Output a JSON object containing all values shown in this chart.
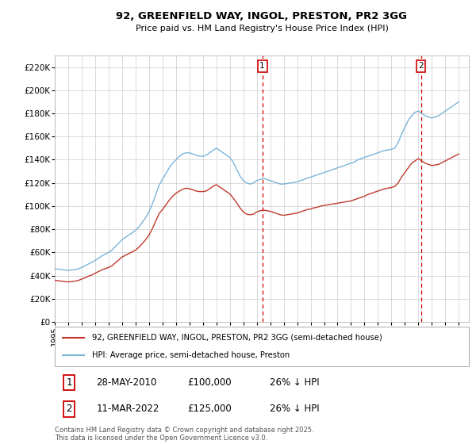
{
  "title": "92, GREENFIELD WAY, INGOL, PRESTON, PR2 3GG",
  "subtitle": "Price paid vs. HM Land Registry's House Price Index (HPI)",
  "ylim": [
    0,
    230000
  ],
  "yticks": [
    0,
    20000,
    40000,
    60000,
    80000,
    100000,
    120000,
    140000,
    160000,
    180000,
    200000,
    220000
  ],
  "ytick_labels": [
    "£0",
    "£20K",
    "£40K",
    "£60K",
    "£80K",
    "£100K",
    "£120K",
    "£140K",
    "£160K",
    "£180K",
    "£200K",
    "£220K"
  ],
  "sale1_date": 2010.41,
  "sale1_price": 100000,
  "sale1_label": "1",
  "sale2_date": 2022.19,
  "sale2_price": 125000,
  "sale2_label": "2",
  "hpi_color": "#7ab4d8",
  "price_color": "#c0392b",
  "dashed_line_color": "#cc0000",
  "grid_color": "#cccccc",
  "background_color": "#ffffff",
  "legend_label_red": "92, GREENFIELD WAY, INGOL, PRESTON, PR2 3GG (semi-detached house)",
  "legend_label_blue": "HPI: Average price, semi-detached house, Preston",
  "footer_line1": "Contains HM Land Registry data © Crown copyright and database right 2025.",
  "footer_line2": "This data is licensed under the Open Government Licence v3.0.",
  "table_rows": [
    {
      "num": "1",
      "date": "28-MAY-2010",
      "price": "£100,000",
      "change": "26% ↓ HPI"
    },
    {
      "num": "2",
      "date": "11-MAR-2022",
      "price": "£125,000",
      "change": "26% ↓ HPI"
    }
  ],
  "hpi_data": {
    "years": [
      1995.0,
      1995.25,
      1995.5,
      1995.75,
      1996.0,
      1996.25,
      1996.5,
      1996.75,
      1997.0,
      1997.25,
      1997.5,
      1997.75,
      1998.0,
      1998.25,
      1998.5,
      1998.75,
      1999.0,
      1999.25,
      1999.5,
      1999.75,
      2000.0,
      2000.25,
      2000.5,
      2000.75,
      2001.0,
      2001.25,
      2001.5,
      2001.75,
      2002.0,
      2002.25,
      2002.5,
      2002.75,
      2003.0,
      2003.25,
      2003.5,
      2003.75,
      2004.0,
      2004.25,
      2004.5,
      2004.75,
      2005.0,
      2005.25,
      2005.5,
      2005.75,
      2006.0,
      2006.25,
      2006.5,
      2006.75,
      2007.0,
      2007.25,
      2007.5,
      2007.75,
      2008.0,
      2008.25,
      2008.5,
      2008.75,
      2009.0,
      2009.25,
      2009.5,
      2009.75,
      2010.0,
      2010.25,
      2010.5,
      2010.75,
      2011.0,
      2011.25,
      2011.5,
      2011.75,
      2012.0,
      2012.25,
      2012.5,
      2012.75,
      2013.0,
      2013.25,
      2013.5,
      2013.75,
      2014.0,
      2014.25,
      2014.5,
      2014.75,
      2015.0,
      2015.25,
      2015.5,
      2015.75,
      2016.0,
      2016.25,
      2016.5,
      2016.75,
      2017.0,
      2017.25,
      2017.5,
      2017.75,
      2018.0,
      2018.25,
      2018.5,
      2018.75,
      2019.0,
      2019.25,
      2019.5,
      2019.75,
      2020.0,
      2020.25,
      2020.5,
      2020.75,
      2021.0,
      2021.25,
      2021.5,
      2021.75,
      2022.0,
      2022.25,
      2022.5,
      2022.75,
      2023.0,
      2023.25,
      2023.5,
      2023.75,
      2024.0,
      2024.25,
      2024.5,
      2024.75,
      2025.0
    ],
    "values": [
      46000,
      45500,
      45200,
      44800,
      44500,
      44800,
      45200,
      45800,
      47000,
      48500,
      50000,
      51500,
      53000,
      55000,
      57000,
      58500,
      60000,
      62000,
      65000,
      68000,
      71000,
      73000,
      75000,
      77000,
      79000,
      82000,
      86000,
      90000,
      95000,
      102000,
      110000,
      118000,
      123000,
      128000,
      133000,
      137000,
      140000,
      143000,
      145000,
      146000,
      146000,
      145000,
      144000,
      143000,
      143000,
      144000,
      146000,
      148000,
      150000,
      148000,
      146000,
      144000,
      142000,
      138000,
      132000,
      126000,
      122000,
      120000,
      119000,
      120000,
      122000,
      123000,
      124000,
      123000,
      122000,
      121000,
      120000,
      119000,
      119000,
      119500,
      120000,
      120500,
      121000,
      122000,
      123000,
      124000,
      125000,
      126000,
      127000,
      128000,
      129000,
      130000,
      131000,
      132000,
      133000,
      134000,
      135000,
      136000,
      137000,
      138000,
      140000,
      141000,
      142000,
      143000,
      144000,
      145000,
      146000,
      147000,
      148000,
      148500,
      149000,
      150000,
      155000,
      162000,
      168000,
      174000,
      178000,
      181000,
      182000,
      180000,
      178000,
      177000,
      176000,
      177000,
      178000,
      180000,
      182000,
      184000,
      186000,
      188000,
      190000
    ]
  },
  "price_data": {
    "years": [
      1995.0,
      1995.25,
      1995.5,
      1995.75,
      1996.0,
      1996.25,
      1996.5,
      1996.75,
      1997.0,
      1997.25,
      1997.5,
      1997.75,
      1998.0,
      1998.25,
      1998.5,
      1998.75,
      1999.0,
      1999.25,
      1999.5,
      1999.75,
      2000.0,
      2000.25,
      2000.5,
      2000.75,
      2001.0,
      2001.25,
      2001.5,
      2001.75,
      2002.0,
      2002.25,
      2002.5,
      2002.75,
      2003.0,
      2003.25,
      2003.5,
      2003.75,
      2004.0,
      2004.25,
      2004.5,
      2004.75,
      2005.0,
      2005.25,
      2005.5,
      2005.75,
      2006.0,
      2006.25,
      2006.5,
      2006.75,
      2007.0,
      2007.25,
      2007.5,
      2007.75,
      2008.0,
      2008.25,
      2008.5,
      2008.75,
      2009.0,
      2009.25,
      2009.5,
      2009.75,
      2010.0,
      2010.25,
      2010.5,
      2010.75,
      2011.0,
      2011.25,
      2011.5,
      2011.75,
      2012.0,
      2012.25,
      2012.5,
      2012.75,
      2013.0,
      2013.25,
      2013.5,
      2013.75,
      2014.0,
      2014.25,
      2014.5,
      2014.75,
      2015.0,
      2015.25,
      2015.5,
      2015.75,
      2016.0,
      2016.25,
      2016.5,
      2016.75,
      2017.0,
      2017.25,
      2017.5,
      2017.75,
      2018.0,
      2018.25,
      2018.5,
      2018.75,
      2019.0,
      2019.25,
      2019.5,
      2019.75,
      2020.0,
      2020.25,
      2020.5,
      2020.75,
      2021.0,
      2021.25,
      2021.5,
      2021.75,
      2022.0,
      2022.25,
      2022.5,
      2022.75,
      2023.0,
      2023.25,
      2023.5,
      2023.75,
      2024.0,
      2024.25,
      2024.5,
      2024.75,
      2025.0
    ],
    "values": [
      36000,
      35500,
      35200,
      34800,
      34500,
      34800,
      35200,
      35800,
      37000,
      38000,
      39500,
      40500,
      42000,
      43500,
      45000,
      46000,
      47000,
      48500,
      51000,
      53500,
      56000,
      57500,
      59000,
      60500,
      62000,
      64500,
      67500,
      71000,
      75000,
      80500,
      87000,
      93500,
      97000,
      101000,
      105000,
      108500,
      111000,
      113000,
      114500,
      115500,
      115000,
      114000,
      113000,
      112500,
      112500,
      113000,
      115000,
      117000,
      118500,
      116500,
      114500,
      112500,
      110500,
      107000,
      103000,
      98500,
      95000,
      93000,
      92500,
      93000,
      95000,
      96000,
      96500,
      96000,
      95500,
      94500,
      93500,
      92500,
      92000,
      92500,
      93000,
      93500,
      94000,
      95000,
      96000,
      97000,
      97500,
      98500,
      99000,
      100000,
      100500,
      101000,
      101500,
      102000,
      102500,
      103000,
      103500,
      104000,
      104500,
      105500,
      106500,
      107500,
      108500,
      110000,
      111000,
      112000,
      113000,
      114000,
      115000,
      115500,
      116000,
      117000,
      120000,
      125000,
      129000,
      133000,
      137000,
      139000,
      141000,
      139000,
      137000,
      136000,
      135000,
      135500,
      136000,
      137500,
      139000,
      140500,
      142000,
      143500,
      145000
    ]
  }
}
